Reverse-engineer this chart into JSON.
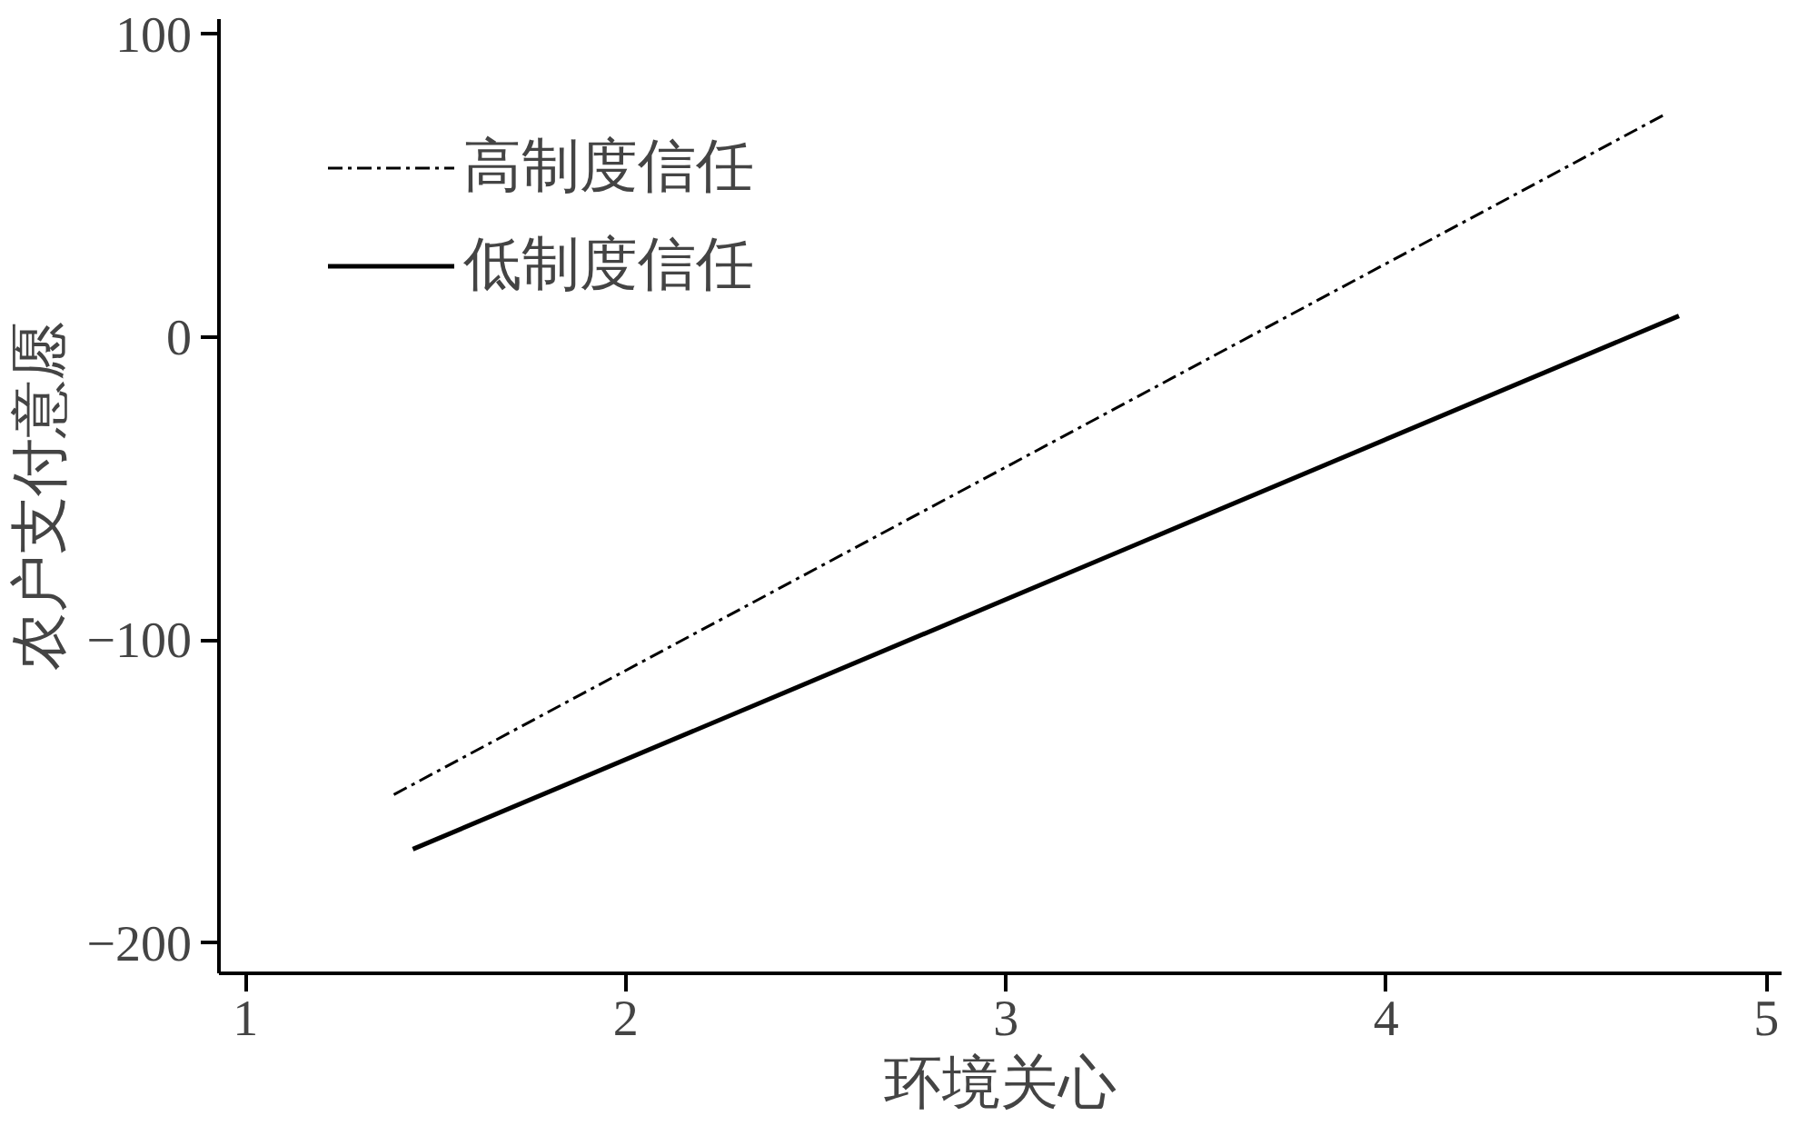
{
  "chart_data": {
    "type": "line",
    "xlabel": "环境关心",
    "ylabel": "农户支付意愿",
    "xlim": [
      0.93,
      5.04
    ],
    "ylim": [
      -210,
      105
    ],
    "xticks": [
      1,
      2,
      3,
      4,
      5
    ],
    "yticks": [
      -200,
      -100,
      0,
      100
    ],
    "grid": false,
    "legend": "top left",
    "marker": "none",
    "series": [
      {
        "name": "高制度信任",
        "color": "#000000",
        "line_style": "dashdot",
        "x": [
          1.39,
          4.74
        ],
        "values": [
          -151,
          74
        ]
      },
      {
        "name": "低制度信任",
        "color": "#000000",
        "line_style": "solid",
        "x": [
          1.44,
          4.77
        ],
        "values": [
          -169,
          7
        ]
      }
    ]
  }
}
